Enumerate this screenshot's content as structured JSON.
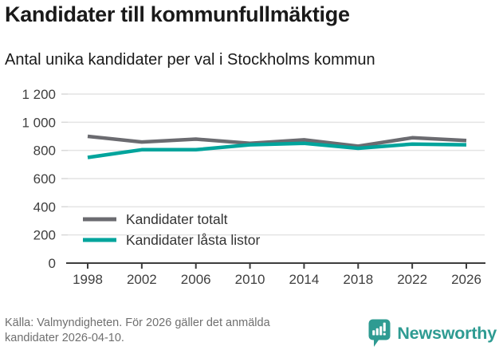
{
  "title": "Kandidater till kommunfullmäktige",
  "subtitle": "Antal unika kandidater per val i Stockholms kommun",
  "chart_data": {
    "type": "line",
    "x": [
      1998,
      2002,
      2006,
      2010,
      2014,
      2018,
      2022,
      2026
    ],
    "xtick_labels": [
      "1998",
      "2002",
      "2006",
      "2010",
      "2014",
      "2018",
      "2022",
      "2026"
    ],
    "series": [
      {
        "name": "Kandidater totalt",
        "color": "#6b6b70",
        "values": [
          900,
          860,
          880,
          850,
          875,
          830,
          890,
          870
        ]
      },
      {
        "name": "Kandidater låsta listor",
        "color": "#00a49c",
        "values": [
          750,
          805,
          805,
          840,
          850,
          815,
          845,
          840
        ]
      }
    ],
    "ylim": [
      0,
      1200
    ],
    "yticks": [
      0,
      200,
      400,
      600,
      800,
      1000,
      1200
    ],
    "ytick_labels": [
      "0",
      "200",
      "400",
      "600",
      "800",
      "1 000",
      "1 200"
    ],
    "grid": "horizontal",
    "legend_position": "inside-bottom-left",
    "colors": {
      "gridline": "#e4e4e4",
      "y_tick": "#d9d9d9",
      "zero_axis": "#3d3d3d",
      "axis_label": "#3f3f3f",
      "legend_label": "#333333"
    }
  },
  "footer": {
    "source_lines": [
      "Källa: Valmyndigheten. För 2026 gäller det anmälda",
      "kandidater 2026-04-10."
    ],
    "logo_text": "Newsworthy",
    "logo_color": "#2e9b92"
  }
}
